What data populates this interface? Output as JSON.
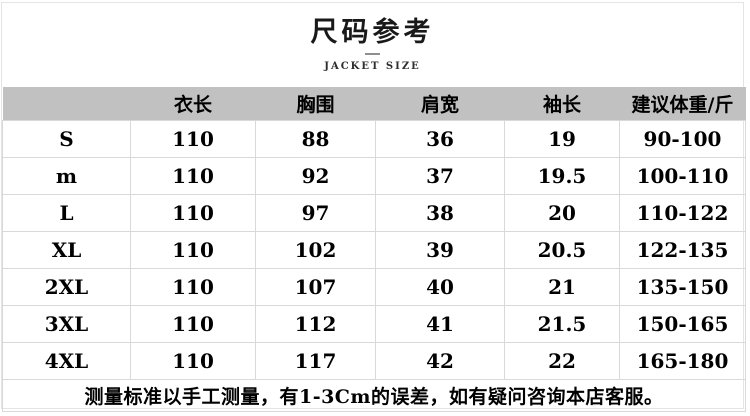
{
  "header": {
    "title": "尺码参考",
    "subtitle": "JACKET SIZE"
  },
  "size_table": {
    "columns": [
      "",
      "衣长",
      "胸围",
      "肩宽",
      "袖长",
      "建议体重/斤"
    ],
    "rows": [
      [
        "S",
        "110",
        "88",
        "36",
        "19",
        "90-100"
      ],
      [
        "m",
        "110",
        "92",
        "37",
        "19.5",
        "100-110"
      ],
      [
        "L",
        "110",
        "97",
        "38",
        "20",
        "110-122"
      ],
      [
        "XL",
        "110",
        "102",
        "39",
        "20.5",
        "122-135"
      ],
      [
        "2XL",
        "110",
        "107",
        "40",
        "21",
        "135-150"
      ],
      [
        "3XL",
        "110",
        "112",
        "41",
        "21.5",
        "150-165"
      ],
      [
        "4XL",
        "110",
        "117",
        "42",
        "22",
        "165-180"
      ]
    ],
    "note": "测量标准以手工测量，有1-3Cm的误差，如有疑问咨询本店客服。"
  },
  "colors": {
    "header_row_bg": "#c1c1c1",
    "grid_line": "#d9d9d9",
    "text": "#000000",
    "background": "#ffffff"
  }
}
